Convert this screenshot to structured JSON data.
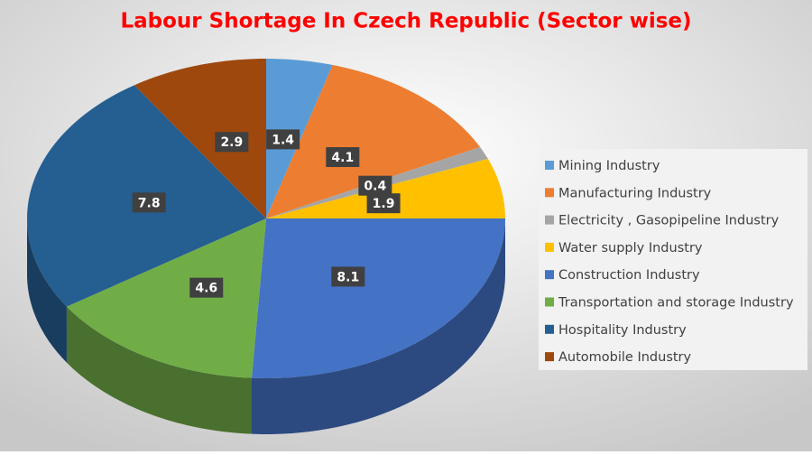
{
  "chart_data": {
    "type": "pie3d",
    "title": "Labour Shortage In Czech Republic (Sector wise)",
    "categories": [
      "Mining Industry",
      "Manufacturing Industry",
      "Electricity , Gasopipeline Industry",
      "Water supply Industry",
      "Construction Industry",
      "Transportation and storage Industry",
      "Hospitality Industry",
      "Automobile Industry"
    ],
    "values": [
      1.4,
      4.1,
      0.4,
      1.9,
      8.1,
      4.6,
      7.8,
      2.9
    ],
    "colors": [
      "#5b9bd5",
      "#ed7d31",
      "#a5a5a5",
      "#ffc000",
      "#4472c4",
      "#70ad47",
      "#255e91",
      "#9e480e"
    ],
    "legend": "right"
  }
}
